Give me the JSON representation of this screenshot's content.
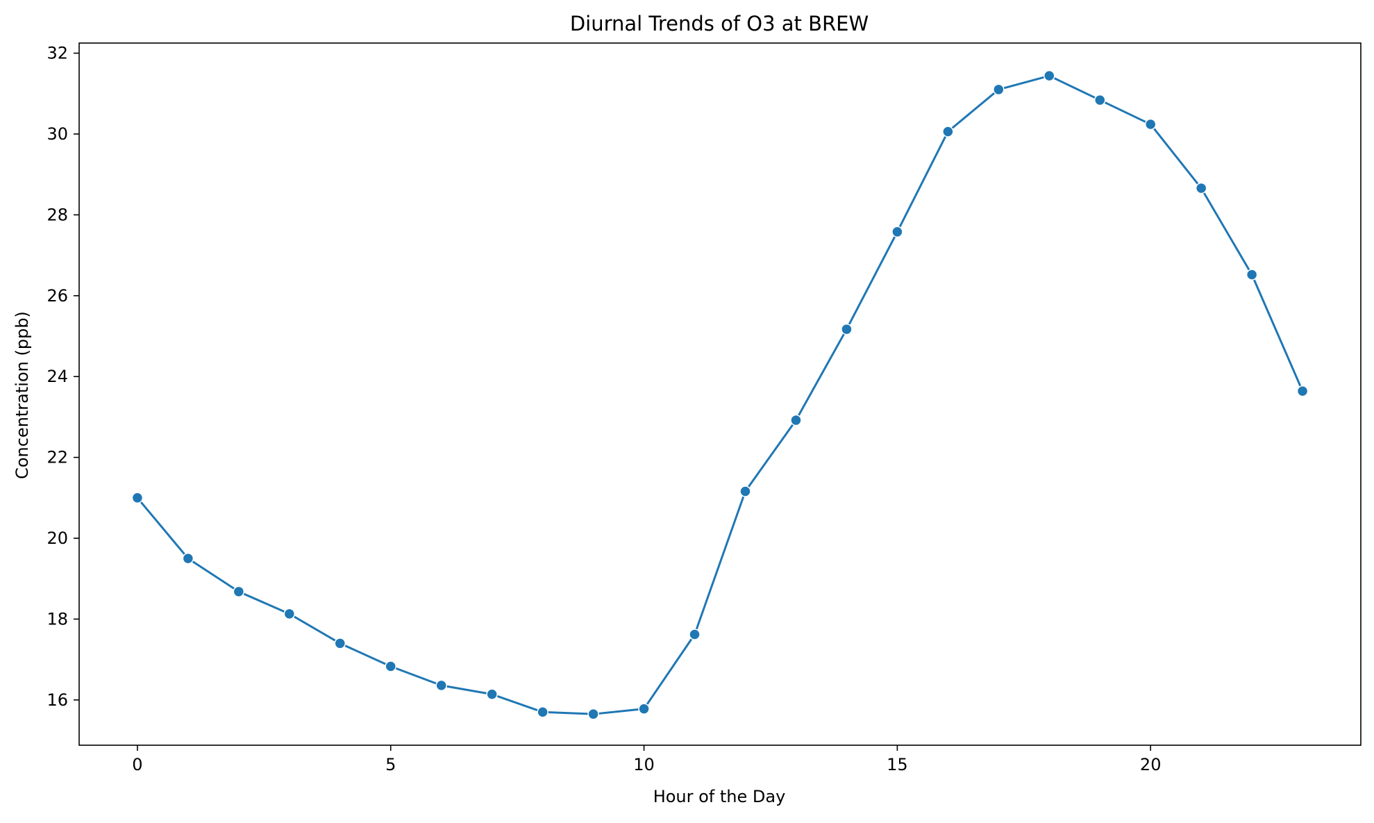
{
  "chart_data": {
    "type": "line",
    "title": "Diurnal Trends of O3 at BREW",
    "xlabel": "Hour of the Day",
    "ylabel": "Concentration (ppb)",
    "xlim": [
      -1.15,
      24.15
    ],
    "ylim": [
      14.88,
      32.25
    ],
    "x_ticks": [
      0,
      5,
      10,
      15,
      20
    ],
    "y_ticks": [
      16,
      18,
      20,
      22,
      24,
      26,
      28,
      30,
      32
    ],
    "grid": false,
    "legend": "none",
    "colors": {
      "series": "#1f77b4",
      "frame": "#000000"
    },
    "series": [
      {
        "x": [
          0,
          1,
          2,
          3,
          4,
          5,
          6,
          7,
          8,
          9,
          10,
          11,
          12,
          13,
          14,
          15,
          16,
          17,
          18,
          19,
          20,
          21,
          22,
          23
        ],
        "values": [
          21.0,
          19.5,
          18.68,
          18.13,
          17.4,
          16.83,
          16.36,
          16.14,
          15.7,
          15.65,
          15.78,
          17.62,
          21.16,
          22.92,
          25.17,
          27.58,
          30.06,
          31.1,
          31.44,
          30.84,
          30.24,
          28.66,
          26.52,
          23.64
        ]
      }
    ]
  }
}
